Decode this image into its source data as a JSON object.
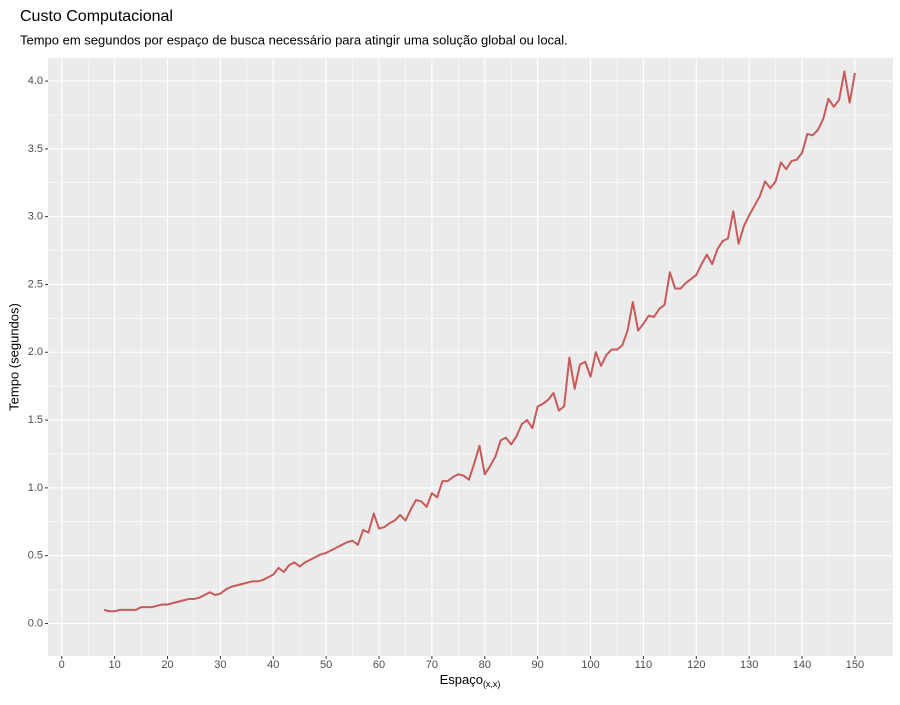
{
  "chart_data": {
    "type": "line",
    "title": "Custo Computacional",
    "subtitle": "Tempo em segundos por espaço de busca necessário para atingir uma solução global ou local.",
    "xlabel": "Espaço",
    "xlabel_subscript": "(x,x)",
    "ylabel": "Tempo (segundos)",
    "x": [
      8,
      9,
      10,
      11,
      12,
      13,
      14,
      15,
      16,
      17,
      18,
      19,
      20,
      21,
      22,
      23,
      24,
      25,
      26,
      27,
      28,
      29,
      30,
      31,
      32,
      33,
      34,
      35,
      36,
      37,
      38,
      39,
      40,
      41,
      42,
      43,
      44,
      45,
      46,
      47,
      48,
      49,
      50,
      51,
      52,
      53,
      54,
      55,
      56,
      57,
      58,
      59,
      60,
      61,
      62,
      63,
      64,
      65,
      66,
      67,
      68,
      69,
      70,
      71,
      72,
      73,
      74,
      75,
      76,
      77,
      78,
      79,
      80,
      81,
      82,
      83,
      84,
      85,
      86,
      87,
      88,
      89,
      90,
      91,
      92,
      93,
      94,
      95,
      96,
      97,
      98,
      99,
      100,
      101,
      102,
      103,
      104,
      105,
      106,
      107,
      108,
      109,
      110,
      111,
      112,
      113,
      114,
      115,
      116,
      117,
      118,
      119,
      120,
      121,
      122,
      123,
      124,
      125,
      126,
      127,
      128,
      129,
      130,
      131,
      132,
      133,
      134,
      135,
      136,
      137,
      138,
      139,
      140,
      141,
      142,
      143,
      144,
      145,
      146,
      147,
      148,
      149,
      150
    ],
    "series": [
      {
        "color": "#c85a5a",
        "values": [
          0.1,
          0.09,
          0.09,
          0.1,
          0.1,
          0.1,
          0.1,
          0.12,
          0.12,
          0.12,
          0.13,
          0.14,
          0.14,
          0.15,
          0.16,
          0.17,
          0.18,
          0.18,
          0.19,
          0.21,
          0.23,
          0.21,
          0.22,
          0.25,
          0.27,
          0.28,
          0.29,
          0.3,
          0.31,
          0.31,
          0.32,
          0.34,
          0.36,
          0.41,
          0.38,
          0.43,
          0.45,
          0.42,
          0.45,
          0.47,
          0.49,
          0.51,
          0.52,
          0.54,
          0.56,
          0.58,
          0.6,
          0.61,
          0.58,
          0.69,
          0.67,
          0.81,
          0.7,
          0.71,
          0.74,
          0.76,
          0.8,
          0.76,
          0.84,
          0.91,
          0.9,
          0.86,
          0.96,
          0.93,
          1.05,
          1.05,
          1.08,
          1.1,
          1.09,
          1.06,
          1.18,
          1.31,
          1.1,
          1.16,
          1.23,
          1.35,
          1.37,
          1.32,
          1.38,
          1.47,
          1.5,
          1.44,
          1.6,
          1.62,
          1.65,
          1.7,
          1.57,
          1.6,
          1.96,
          1.73,
          1.91,
          1.93,
          1.82,
          2.0,
          1.9,
          1.98,
          2.02,
          2.02,
          2.05,
          2.16,
          2.37,
          2.16,
          2.21,
          2.27,
          2.26,
          2.32,
          2.35,
          2.59,
          2.47,
          2.47,
          2.51,
          2.54,
          2.57,
          2.65,
          2.72,
          2.65,
          2.76,
          2.82,
          2.84,
          3.04,
          2.8,
          2.93,
          3.01,
          3.08,
          3.15,
          3.26,
          3.21,
          3.26,
          3.4,
          3.35,
          3.41,
          3.42,
          3.47,
          3.61,
          3.6,
          3.64,
          3.72,
          3.87,
          3.81,
          3.86,
          4.07,
          3.84,
          4.06
        ]
      }
    ],
    "xlim": [
      -2.6,
      157.2
    ],
    "ylim": [
      -0.24,
      4.17
    ],
    "xticks": [
      0,
      10,
      20,
      30,
      40,
      50,
      60,
      70,
      80,
      90,
      100,
      110,
      120,
      130,
      140,
      150
    ],
    "yticks": [
      {
        "value": 0,
        "label": "0.0"
      },
      {
        "value": 0.5,
        "label": "0.5"
      },
      {
        "value": 1,
        "label": "1.0"
      },
      {
        "value": 1.5,
        "label": "1.5"
      },
      {
        "value": 2,
        "label": "2.0"
      },
      {
        "value": 2.5,
        "label": "2.5"
      },
      {
        "value": 3,
        "label": "3.0"
      },
      {
        "value": 3.5,
        "label": "3.5"
      },
      {
        "value": 4,
        "label": "4.0"
      }
    ],
    "grid": true
  }
}
